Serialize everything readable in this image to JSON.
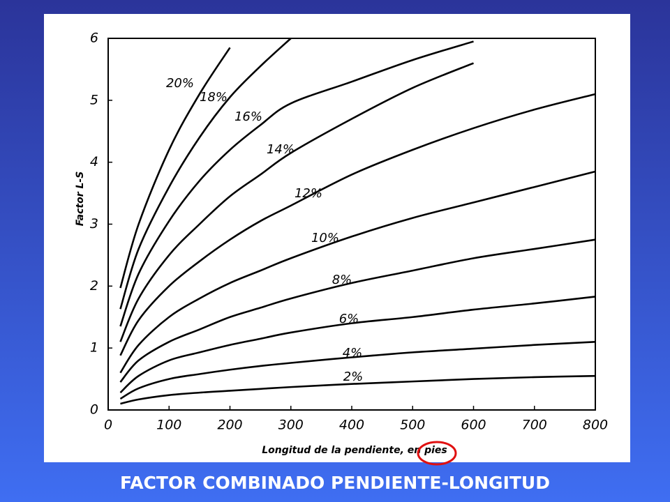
{
  "chart_data": {
    "type": "line",
    "title": "FACTOR COMBINADO PENDIENTE-LONGITUD",
    "x_label": "Longitud de la pendiente, en pies",
    "y_label": "Factor L-S",
    "x": [
      20,
      50,
      100,
      150,
      200,
      250,
      300,
      400,
      500,
      600,
      700,
      800
    ],
    "series": [
      {
        "name": "20%",
        "color": "#000000",
        "values": [
          1.97,
          3.0,
          4.2,
          5.1,
          5.85,
          null,
          null,
          null,
          null,
          null,
          null,
          null
        ]
      },
      {
        "name": "18%",
        "color": "#000000",
        "values": [
          1.63,
          2.6,
          3.6,
          4.4,
          5.05,
          5.55,
          6.0,
          null,
          null,
          null,
          null,
          null
        ]
      },
      {
        "name": "16%",
        "color": "#000000",
        "values": [
          1.35,
          2.2,
          3.05,
          3.7,
          4.2,
          4.6,
          4.95,
          5.3,
          5.65,
          5.95,
          null,
          null
        ]
      },
      {
        "name": "14%",
        "color": "#000000",
        "values": [
          1.1,
          1.8,
          2.5,
          3.0,
          3.45,
          3.8,
          4.15,
          4.7,
          5.2,
          5.6,
          null,
          null
        ]
      },
      {
        "name": "12%",
        "color": "#000000",
        "values": [
          0.88,
          1.45,
          2.0,
          2.4,
          2.75,
          3.05,
          3.3,
          3.8,
          4.2,
          4.55,
          4.85,
          5.1
        ]
      },
      {
        "name": "10%",
        "color": "#000000",
        "values": [
          0.6,
          1.05,
          1.5,
          1.8,
          2.05,
          2.25,
          2.45,
          2.8,
          3.1,
          3.35,
          3.6,
          3.85
        ]
      },
      {
        "name": "8%",
        "color": "#000000",
        "values": [
          0.45,
          0.8,
          1.1,
          1.3,
          1.5,
          1.65,
          1.8,
          2.05,
          2.25,
          2.45,
          2.6,
          2.75
        ]
      },
      {
        "name": "6%",
        "color": "#000000",
        "values": [
          0.28,
          0.55,
          0.8,
          0.93,
          1.05,
          1.15,
          1.25,
          1.4,
          1.5,
          1.62,
          1.72,
          1.83
        ]
      },
      {
        "name": "4%",
        "color": "#000000",
        "values": [
          0.18,
          0.35,
          0.5,
          0.58,
          0.65,
          0.71,
          0.76,
          0.85,
          0.93,
          0.99,
          1.05,
          1.1
        ]
      },
      {
        "name": "2%",
        "color": "#000000",
        "values": [
          0.1,
          0.17,
          0.24,
          0.28,
          0.31,
          0.34,
          0.37,
          0.42,
          0.46,
          0.5,
          0.53,
          0.55
        ]
      }
    ],
    "xlim": [
      0,
      800
    ],
    "xticks": [
      0,
      100,
      200,
      300,
      400,
      500,
      600,
      700,
      800
    ],
    "ylim": [
      0,
      6
    ],
    "yticks": [
      0,
      1,
      2,
      3,
      4,
      5,
      6
    ],
    "grid": false
  }
}
